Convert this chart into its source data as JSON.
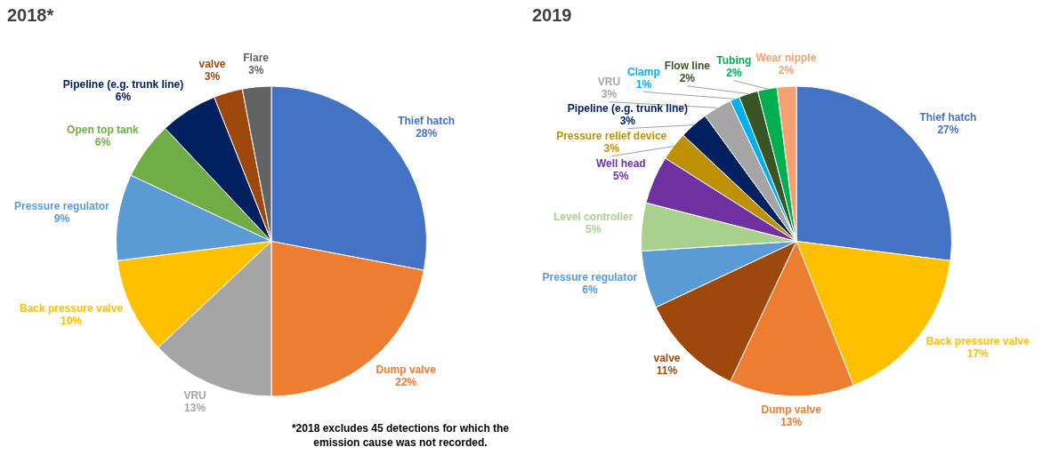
{
  "chart_data": [
    {
      "type": "pie",
      "title": "2018*",
      "categories": [
        "Thief hatch",
        "Dump valve",
        "VRU",
        "Back pressure valve",
        "Pressure regulator",
        "Open top tank",
        "Pipeline (e.g. trunk line)",
        "valve",
        "Flare"
      ],
      "values": [
        28,
        22,
        13,
        10,
        9,
        6,
        6,
        3,
        3
      ],
      "value_labels": [
        "28%",
        "22%",
        "13%",
        "10%",
        "9%",
        "6%",
        "6%",
        "3%",
        "3%"
      ],
      "colors": [
        "#4472c4",
        "#ed7d31",
        "#a5a5a5",
        "#ffc000",
        "#5b9bd5",
        "#70ad47",
        "#002060",
        "#9e480e",
        "#636363"
      ],
      "annotations": [
        "*2018 excludes 45 detections for which the emission cause was not recorded."
      ]
    },
    {
      "type": "pie",
      "title": "2019",
      "categories": [
        "Thief hatch",
        "Back pressure valve",
        "Dump valve",
        "valve",
        "Pressure regulator",
        "Level controller",
        "Well head",
        "Pressure relief device",
        "Pipeline (e.g. trunk line)",
        "VRU",
        "Clamp",
        "Flow line",
        "Tubing",
        "Wear nipple"
      ],
      "values": [
        27,
        17,
        13,
        11,
        6,
        5,
        5,
        3,
        3,
        3,
        1,
        2,
        2,
        2
      ],
      "value_labels": [
        "27%",
        "17%",
        "13%",
        "11%",
        "6%",
        "5%",
        "5%",
        "3%",
        "3%",
        "3%",
        "1%",
        "2%",
        "2%",
        "2%"
      ],
      "colors": [
        "#4472c4",
        "#ffc000",
        "#ed7d31",
        "#9e480e",
        "#5b9bd5",
        "#a9d18e",
        "#7030a0",
        "#bf9000",
        "#002060",
        "#a5a5a5",
        "#00b0f0",
        "#375623",
        "#00b050",
        "#f4a070"
      ]
    }
  ]
}
